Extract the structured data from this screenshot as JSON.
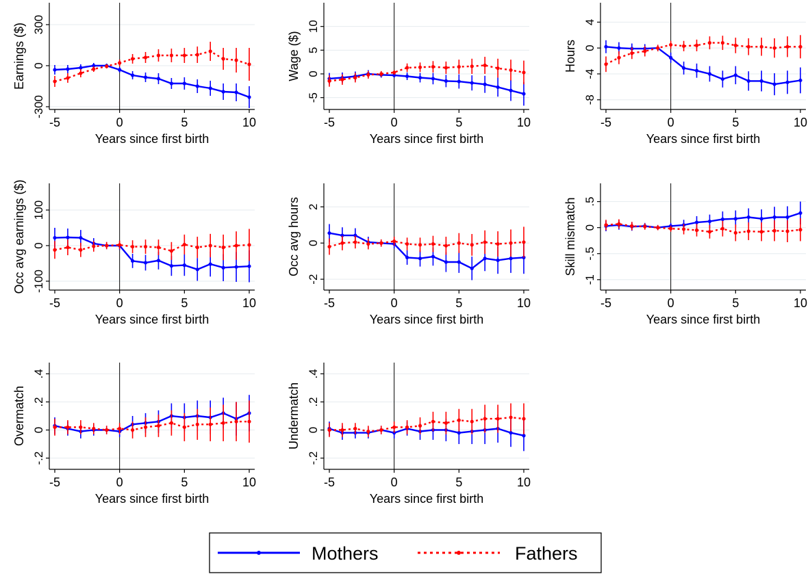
{
  "figure": {
    "xlabel": "Years since first birth",
    "x_ticks": [
      -5,
      0,
      5,
      10
    ]
  },
  "legend": {
    "placement": "bottom-center",
    "items": [
      {
        "label": "Mothers",
        "color": "#0000ff",
        "style": "solid"
      },
      {
        "label": "Fathers",
        "color": "#ff0000",
        "style": "dotted"
      }
    ]
  },
  "chart_data": [
    {
      "type": "line",
      "ylabel": "Earnings ($)",
      "xlabel": "Years since first birth",
      "xlim": [
        -5,
        10
      ],
      "ylim": [
        -320,
        460
      ],
      "y_ticks": [
        -300,
        0,
        300
      ],
      "grid": true,
      "x": [
        -5,
        -4,
        -3,
        -2,
        -1,
        0,
        1,
        2,
        3,
        4,
        5,
        6,
        7,
        8,
        9,
        10
      ],
      "series": [
        {
          "name": "Mothers",
          "color": "#0000ff",
          "values": [
            -30,
            -25,
            -15,
            0,
            0,
            -30,
            -70,
            -85,
            -95,
            -130,
            -130,
            -150,
            -165,
            -190,
            -195,
            -230
          ],
          "ci": [
            35,
            30,
            25,
            20,
            15,
            20,
            30,
            35,
            40,
            40,
            45,
            50,
            55,
            60,
            65,
            80
          ]
        },
        {
          "name": "Fathers",
          "color": "#ff0000",
          "values": [
            -115,
            -90,
            -55,
            -25,
            -5,
            20,
            50,
            60,
            75,
            75,
            75,
            80,
            105,
            50,
            40,
            10
          ],
          "ci": [
            40,
            35,
            30,
            20,
            15,
            25,
            35,
            40,
            45,
            50,
            55,
            60,
            70,
            80,
            90,
            120
          ]
        }
      ]
    },
    {
      "type": "line",
      "ylabel": "Wage ($)",
      "xlabel": "Years since first birth",
      "xlim": [
        -5,
        10
      ],
      "ylim": [
        -7.5,
        15
      ],
      "y_ticks": [
        -5,
        0,
        5,
        10
      ],
      "grid": true,
      "x": [
        -5,
        -4,
        -3,
        -2,
        -1,
        0,
        1,
        2,
        3,
        4,
        5,
        6,
        7,
        8,
        9,
        10
      ],
      "series": [
        {
          "name": "Mothers",
          "color": "#0000ff",
          "values": [
            -1,
            -0.8,
            -0.5,
            0,
            -0.2,
            -0.3,
            -0.5,
            -0.8,
            -1,
            -1.5,
            -1.6,
            -1.9,
            -2.2,
            -2.8,
            -3.5,
            -4.2
          ],
          "ci": [
            1.2,
            1.1,
            1,
            0.8,
            0.6,
            0.5,
            0.8,
            1,
            1.2,
            1.3,
            1.5,
            1.6,
            1.8,
            2,
            2.2,
            2.5
          ]
        },
        {
          "name": "Fathers",
          "color": "#ff0000",
          "values": [
            -1.5,
            -1.2,
            -0.8,
            -0.2,
            0,
            0.3,
            1.3,
            1.4,
            1.5,
            1.3,
            1.5,
            1.6,
            1.8,
            1.2,
            0.8,
            0.3
          ],
          "ci": [
            1.2,
            1.1,
            1,
            0.8,
            0.6,
            0.5,
            0.9,
            1,
            1.2,
            1.3,
            1.5,
            1.6,
            1.8,
            2,
            2.2,
            2.5
          ]
        }
      ]
    },
    {
      "type": "line",
      "ylabel": "Hours",
      "xlabel": "Years since first birth",
      "xlim": [
        -5,
        10
      ],
      "ylim": [
        -9.5,
        7
      ],
      "y_ticks": [
        -8,
        -4,
        0,
        4
      ],
      "grid": true,
      "x": [
        -5,
        -4,
        -3,
        -2,
        -1,
        0,
        1,
        2,
        3,
        4,
        5,
        6,
        7,
        8,
        9,
        10
      ],
      "series": [
        {
          "name": "Mothers",
          "color": "#0000ff",
          "values": [
            0.2,
            0,
            -0.1,
            -0.1,
            0,
            -1.5,
            -3.1,
            -3.5,
            -4,
            -4.8,
            -4.2,
            -5.1,
            -5.1,
            -5.6,
            -5.3,
            -5
          ],
          "ci": [
            1,
            0.9,
            0.8,
            0.7,
            0.5,
            0.8,
            1,
            1.1,
            1.2,
            1.3,
            1.4,
            1.5,
            1.6,
            1.7,
            1.8,
            2
          ]
        },
        {
          "name": "Fathers",
          "color": "#ff0000",
          "values": [
            -2.5,
            -1.5,
            -0.8,
            -0.5,
            0,
            0.5,
            0.3,
            0.4,
            0.8,
            0.8,
            0.4,
            0.2,
            0.2,
            0,
            0.2,
            0.2
          ],
          "ci": [
            1.2,
            1,
            0.9,
            0.8,
            0.5,
            0.6,
            0.8,
            0.9,
            1,
            1.1,
            1.2,
            1.3,
            1.4,
            1.5,
            1.6,
            1.8
          ]
        }
      ]
    },
    {
      "type": "line",
      "ylabel": "Occ avg earnings ($)",
      "xlabel": "Years since first birth",
      "xlim": [
        -5,
        10
      ],
      "ylim": [
        -125,
        175
      ],
      "y_ticks": [
        -100,
        0,
        100
      ],
      "grid": true,
      "x": [
        -5,
        -4,
        -3,
        -2,
        -1,
        0,
        1,
        2,
        3,
        4,
        5,
        6,
        7,
        8,
        9,
        10
      ],
      "series": [
        {
          "name": "Mothers",
          "color": "#0000ff",
          "values": [
            22,
            23,
            22,
            6,
            0,
            0,
            -43,
            -48,
            -42,
            -57,
            -55,
            -67,
            -52,
            -62,
            -60,
            -58
          ],
          "ci": [
            28,
            25,
            22,
            15,
            10,
            12,
            20,
            22,
            25,
            28,
            30,
            32,
            35,
            38,
            42,
            45
          ]
        },
        {
          "name": "Fathers",
          "color": "#ff0000",
          "values": [
            -12,
            -5,
            -12,
            -2,
            0,
            2,
            -3,
            -3,
            -5,
            -15,
            3,
            -5,
            0,
            -5,
            0,
            2
          ],
          "ci": [
            25,
            22,
            20,
            15,
            10,
            12,
            18,
            20,
            22,
            25,
            28,
            30,
            33,
            36,
            40,
            45
          ]
        }
      ]
    },
    {
      "type": "line",
      "ylabel": "Occ avg hours",
      "xlabel": "Years since first birth",
      "xlim": [
        -5,
        10
      ],
      "ylim": [
        -2.6,
        3.3
      ],
      "y_ticks": [
        -2,
        0,
        2
      ],
      "grid": true,
      "x": [
        -5,
        -4,
        -3,
        -2,
        -1,
        0,
        1,
        2,
        3,
        4,
        5,
        6,
        7,
        8,
        9,
        10
      ],
      "series": [
        {
          "name": "Mothers",
          "color": "#0000ff",
          "values": [
            0.55,
            0.42,
            0.42,
            0.05,
            0,
            -0.05,
            -0.8,
            -0.85,
            -0.75,
            -1.05,
            -1.05,
            -1.4,
            -0.85,
            -0.95,
            -0.85,
            -0.8
          ],
          "ci": [
            0.5,
            0.45,
            0.4,
            0.3,
            0.2,
            0.25,
            0.4,
            0.45,
            0.5,
            0.55,
            0.6,
            0.65,
            0.7,
            0.75,
            0.8,
            0.9
          ]
        },
        {
          "name": "Fathers",
          "color": "#ff0000",
          "values": [
            -0.2,
            0,
            0.05,
            -0.05,
            0,
            0.1,
            -0.05,
            -0.1,
            -0.05,
            -0.15,
            0,
            -0.1,
            0.05,
            -0.05,
            0,
            0.05
          ],
          "ci": [
            0.45,
            0.4,
            0.35,
            0.3,
            0.2,
            0.25,
            0.35,
            0.4,
            0.45,
            0.5,
            0.55,
            0.6,
            0.65,
            0.7,
            0.75,
            0.85
          ]
        }
      ]
    },
    {
      "type": "line",
      "ylabel": "Skill mismatch",
      "xlabel": "Years since first birth",
      "xlim": [
        -5,
        10
      ],
      "ylim": [
        -1.2,
        0.85
      ],
      "y_ticks": [
        -1,
        -0.5,
        0,
        0.5
      ],
      "grid": true,
      "x": [
        -5,
        -4,
        -3,
        -2,
        -1,
        0,
        1,
        2,
        3,
        4,
        5,
        6,
        7,
        8,
        9,
        10
      ],
      "series": [
        {
          "name": "Mothers",
          "color": "#0000ff",
          "values": [
            0.03,
            0.05,
            0.02,
            0.03,
            0,
            0.03,
            0.05,
            0.1,
            0.12,
            0.16,
            0.17,
            0.2,
            0.17,
            0.2,
            0.2,
            0.28
          ],
          "ci": [
            0.1,
            0.09,
            0.08,
            0.06,
            0.05,
            0.06,
            0.1,
            0.12,
            0.13,
            0.15,
            0.16,
            0.17,
            0.18,
            0.2,
            0.21,
            0.22
          ]
        },
        {
          "name": "Fathers",
          "color": "#ff0000",
          "values": [
            0.05,
            0.07,
            0.03,
            0.02,
            0,
            -0.02,
            -0.03,
            -0.05,
            -0.08,
            -0.02,
            -0.1,
            -0.07,
            -0.08,
            -0.06,
            -0.07,
            -0.04
          ],
          "ci": [
            0.1,
            0.09,
            0.08,
            0.06,
            0.05,
            0.06,
            0.1,
            0.12,
            0.13,
            0.15,
            0.16,
            0.17,
            0.18,
            0.2,
            0.21,
            0.22
          ]
        }
      ]
    },
    {
      "type": "line",
      "ylabel": "Overmatch",
      "xlabel": "Years since first birth",
      "xlim": [
        -5,
        10
      ],
      "ylim": [
        -0.28,
        0.48
      ],
      "y_ticks": [
        -0.2,
        0,
        0.2,
        0.4
      ],
      "grid": true,
      "x": [
        -5,
        -4,
        -3,
        -2,
        -1,
        0,
        1,
        2,
        3,
        4,
        5,
        6,
        7,
        8,
        9,
        10
      ],
      "series": [
        {
          "name": "Mothers",
          "color": "#0000ff",
          "values": [
            0.03,
            0.01,
            -0.01,
            0,
            0,
            -0.01,
            0.04,
            0.05,
            0.06,
            0.1,
            0.09,
            0.1,
            0.09,
            0.12,
            0.08,
            0.12
          ],
          "ci": [
            0.06,
            0.05,
            0.05,
            0.04,
            0.03,
            0.04,
            0.06,
            0.07,
            0.08,
            0.09,
            0.1,
            0.11,
            0.12,
            0.11,
            0.12,
            0.13
          ]
        },
        {
          "name": "Fathers",
          "color": "#ff0000",
          "values": [
            0.02,
            0.02,
            0.02,
            0.01,
            0,
            0.01,
            0,
            0.02,
            0.03,
            0.05,
            0.02,
            0.04,
            0.04,
            0.05,
            0.06,
            0.06
          ],
          "ci": [
            0.06,
            0.05,
            0.05,
            0.04,
            0.03,
            0.04,
            0.06,
            0.07,
            0.08,
            0.09,
            0.1,
            0.11,
            0.12,
            0.13,
            0.14,
            0.15
          ]
        }
      ]
    },
    {
      "type": "line",
      "ylabel": "Undermatch",
      "xlabel": "Years since first birth",
      "xlim": [
        -5,
        10
      ],
      "ylim": [
        -0.28,
        0.48
      ],
      "y_ticks": [
        -0.2,
        0,
        0.2,
        0.4
      ],
      "grid": true,
      "x": [
        -5,
        -4,
        -3,
        -2,
        -1,
        0,
        1,
        2,
        3,
        4,
        5,
        6,
        7,
        8,
        9,
        10
      ],
      "series": [
        {
          "name": "Mothers",
          "color": "#0000ff",
          "values": [
            0.01,
            -0.02,
            -0.02,
            -0.02,
            0,
            -0.02,
            0.01,
            -0.01,
            0,
            0,
            -0.02,
            -0.01,
            0,
            0.01,
            -0.02,
            -0.04
          ],
          "ci": [
            0.05,
            0.05,
            0.04,
            0.04,
            0.03,
            0.04,
            0.05,
            0.06,
            0.07,
            0.08,
            0.08,
            0.09,
            0.1,
            0.1,
            0.1,
            0.11
          ]
        },
        {
          "name": "Fathers",
          "color": "#ff0000",
          "values": [
            0,
            0,
            0.01,
            -0.01,
            0,
            0.02,
            0.02,
            0.03,
            0.06,
            0.05,
            0.07,
            0.06,
            0.08,
            0.08,
            0.09,
            0.08
          ],
          "ci": [
            0.05,
            0.05,
            0.04,
            0.04,
            0.03,
            0.04,
            0.05,
            0.06,
            0.07,
            0.08,
            0.08,
            0.09,
            0.1,
            0.1,
            0.1,
            0.11
          ]
        }
      ]
    }
  ]
}
